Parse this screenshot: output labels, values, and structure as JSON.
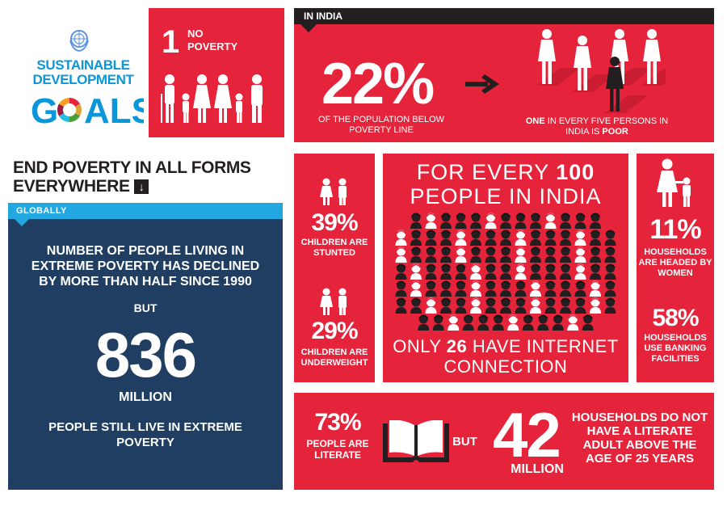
{
  "logo": {
    "line1": "SUSTAINABLE",
    "line2": "DEVELOPMENT",
    "goals_word": "GOALS"
  },
  "goal": {
    "number": "1",
    "label": "NO POVERTY"
  },
  "india_top": {
    "section_label": "IN INDIA",
    "percent": "22%",
    "caption": "OF THE POPULATION  BELOW POVERTY LINE",
    "caption2_bold": "ONE",
    "caption2_mid": " IN EVERY FIVE PERSONS IN INDIA IS ",
    "caption2_end": "POOR",
    "people_total": 5,
    "people_poor": 1
  },
  "heading": "END POVERTY IN ALL FORMS EVERYWHERE",
  "global": {
    "tab_label": "GLOBALLY",
    "text1": "NUMBER OF PEOPLE LIVING IN EXTREME POVERTY HAS DECLINED BY MORE THAN HALF SINCE 1990",
    "but": "BUT",
    "big_number": "836",
    "unit": "MILLION",
    "text2": "PEOPLE STILL LIVE IN EXTREME POVERTY"
  },
  "children": {
    "stunted_pct": "39%",
    "stunted_label": "CHILDREN ARE STUNTED",
    "underweight_pct": "29%",
    "underweight_label": "CHILDREN ARE UNDERWEIGHT"
  },
  "every100": {
    "head_a": "FOR EVERY ",
    "head_num": "100",
    "head_b": " PEOPLE IN INDIA",
    "foot_a": "ONLY ",
    "foot_num": "26",
    "foot_b": " HAVE INTERNET CONNECTION",
    "total_people": 100,
    "connected_people": 26
  },
  "households": {
    "women_pct": "11%",
    "women_label": "HOUSEHOLDS ARE HEADED BY WOMEN",
    "banking_pct": "58%",
    "banking_label": "HOUSEHOLDS USE BANKING FACILITIES"
  },
  "literacy": {
    "pct": "73%",
    "label": "PEOPLE ARE LITERATE",
    "but": "BUT",
    "big_number": "42",
    "unit": "MILLION",
    "text": "HOUSEHOLDS DO NOT HAVE A LITERATE ADULT ABOVE THE AGE OF 25 YEARS"
  },
  "colors": {
    "red": "#e5243b",
    "navy": "#1f3e62",
    "blue": "#23a7e0",
    "dark": "#231f20"
  }
}
